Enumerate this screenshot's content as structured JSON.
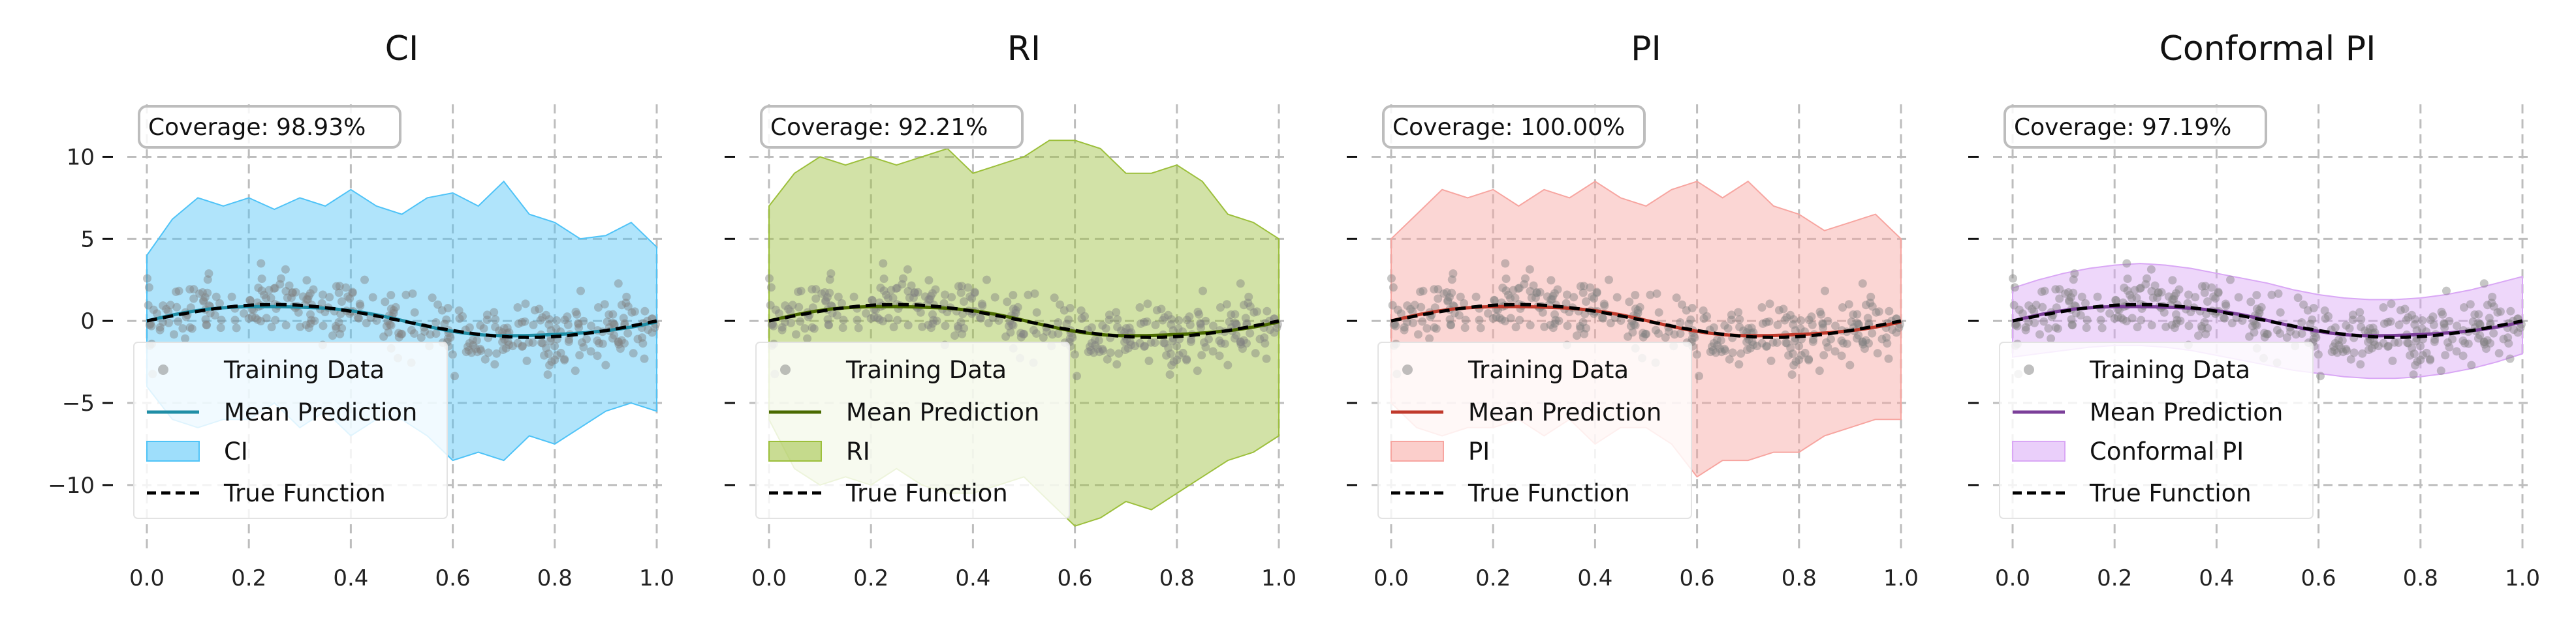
{
  "chart_data": [
    {
      "type": "line",
      "title": "CI",
      "coverage": "Coverage: 98.93%",
      "band_label": "CI",
      "band_color": "#4fc3f7",
      "mean_color": "#1f8ea6",
      "xlim": [
        0.0,
        1.0
      ],
      "ylim": [
        -13.5,
        12.8
      ],
      "xticks": [
        0.0,
        0.2,
        0.4,
        0.6,
        0.8,
        1.0
      ],
      "xtick_labels": [
        "0.0",
        "0.2",
        "0.4",
        "0.6",
        "0.8",
        "1.0"
      ],
      "yticks": [
        10,
        5,
        0,
        -5,
        -10
      ],
      "ytick_labels": [
        "10",
        "5",
        "0",
        "−5",
        "−10"
      ],
      "grid": true,
      "legend": [
        "Training Data",
        "Mean Prediction",
        "CI",
        "True Function"
      ],
      "legend_position": "lower-left",
      "band": {
        "x": [
          0.0,
          0.05,
          0.1,
          0.15,
          0.2,
          0.25,
          0.3,
          0.35,
          0.4,
          0.45,
          0.5,
          0.55,
          0.6,
          0.65,
          0.7,
          0.75,
          0.8,
          0.85,
          0.9,
          0.95,
          1.0
        ],
        "lower": [
          -4,
          -6,
          -6.5,
          -6,
          -6,
          -5,
          -6.5,
          -5.5,
          -7,
          -6,
          -6,
          -7,
          -8.5,
          -8,
          -8.5,
          -7,
          -7.5,
          -6.5,
          -5.5,
          -5,
          -5.5
        ],
        "upper": [
          4,
          6.2,
          7.5,
          7,
          7.5,
          6.8,
          7.5,
          7,
          8,
          7,
          6.5,
          7.5,
          7.8,
          7,
          8.5,
          6.5,
          6,
          5,
          5.2,
          6,
          4.5
        ]
      }
    },
    {
      "type": "line",
      "title": "RI",
      "coverage": "Coverage: 92.21%",
      "band_label": "RI",
      "band_color": "#9cbf3b",
      "mean_color": "#4a6a00",
      "xlim": [
        0.0,
        1.0
      ],
      "ylim": [
        -13.5,
        12.8
      ],
      "xticks": [
        0.0,
        0.2,
        0.4,
        0.6,
        0.8,
        1.0
      ],
      "xtick_labels": [
        "0.0",
        "0.2",
        "0.4",
        "0.6",
        "0.8",
        "1.0"
      ],
      "yticks": [
        10,
        5,
        0,
        -5,
        -10
      ],
      "ytick_labels": [
        "",
        "",
        "",
        "",
        ""
      ],
      "grid": true,
      "legend": [
        "Training Data",
        "Mean Prediction",
        "RI",
        "True Function"
      ],
      "legend_position": "lower-left",
      "band": {
        "x": [
          0.0,
          0.05,
          0.1,
          0.15,
          0.2,
          0.25,
          0.3,
          0.35,
          0.4,
          0.45,
          0.5,
          0.55,
          0.6,
          0.65,
          0.7,
          0.75,
          0.8,
          0.85,
          0.9,
          0.95,
          1.0
        ],
        "lower": [
          -6,
          -9,
          -10,
          -9.5,
          -10,
          -9,
          -10,
          -10.5,
          -10.5,
          -10,
          -9.5,
          -11,
          -12.5,
          -12,
          -11,
          -11.5,
          -10.5,
          -9.5,
          -8.5,
          -8,
          -7
        ],
        "upper": [
          7,
          9,
          10,
          9.5,
          10,
          9.5,
          10,
          10.5,
          9,
          9.5,
          10,
          11,
          11,
          10.5,
          9,
          9,
          9.5,
          8.5,
          6.5,
          6,
          5
        ]
      }
    },
    {
      "type": "line",
      "title": "PI",
      "coverage": "Coverage: 100.00%",
      "band_label": "PI",
      "band_color": "#f7a5a0",
      "mean_color": "#c0392b",
      "xlim": [
        0.0,
        1.0
      ],
      "ylim": [
        -13.5,
        12.8
      ],
      "xticks": [
        0.0,
        0.2,
        0.4,
        0.6,
        0.8,
        1.0
      ],
      "xtick_labels": [
        "0.0",
        "0.2",
        "0.4",
        "0.6",
        "0.8",
        "1.0"
      ],
      "yticks": [
        10,
        5,
        0,
        -5,
        -10
      ],
      "ytick_labels": [
        "",
        "",
        "",
        "",
        ""
      ],
      "grid": true,
      "legend": [
        "Training Data",
        "Mean Prediction",
        "PI",
        "True Function"
      ],
      "legend_position": "lower-left",
      "band": {
        "x": [
          0.0,
          0.05,
          0.1,
          0.15,
          0.2,
          0.25,
          0.3,
          0.35,
          0.4,
          0.45,
          0.5,
          0.55,
          0.6,
          0.65,
          0.7,
          0.75,
          0.8,
          0.85,
          0.9,
          0.95,
          1.0
        ],
        "lower": [
          -5,
          -6.5,
          -7,
          -6.5,
          -6.5,
          -6,
          -7,
          -6,
          -7.5,
          -6.5,
          -6.5,
          -7.5,
          -9.5,
          -8.5,
          -8.5,
          -8,
          -8,
          -7,
          -6.5,
          -6,
          -6
        ],
        "upper": [
          5,
          6.5,
          8,
          7.5,
          8,
          7,
          8,
          7.5,
          8.5,
          7.5,
          7,
          8,
          8.5,
          7.5,
          8.5,
          7,
          6.5,
          5.5,
          6,
          6.5,
          5
        ]
      }
    },
    {
      "type": "line",
      "title": "Conformal PI",
      "coverage": "Coverage: 97.19%",
      "band_label": "Conformal PI",
      "band_color": "#d9a7f5",
      "mean_color": "#7b3f99",
      "xlim": [
        0.0,
        1.0
      ],
      "ylim": [
        -13.5,
        12.8
      ],
      "xticks": [
        0.0,
        0.2,
        0.4,
        0.6,
        0.8,
        1.0
      ],
      "xtick_labels": [
        "0.0",
        "0.2",
        "0.4",
        "0.6",
        "0.8",
        "1.0"
      ],
      "yticks": [
        10,
        5,
        0,
        -5,
        -10
      ],
      "ytick_labels": [
        "",
        "",
        "",
        "",
        ""
      ],
      "grid": true,
      "legend": [
        "Training Data",
        "Mean Prediction",
        "Conformal PI",
        "True Function"
      ],
      "legend_position": "lower-left",
      "band": {
        "x": [
          0.0,
          0.05,
          0.1,
          0.15,
          0.2,
          0.25,
          0.3,
          0.35,
          0.4,
          0.45,
          0.5,
          0.55,
          0.6,
          0.65,
          0.7,
          0.75,
          0.8,
          0.85,
          0.9,
          0.95,
          1.0
        ],
        "lower": [
          -2.2,
          -2,
          -1.8,
          -1.6,
          -1.5,
          -1.5,
          -1.6,
          -1.8,
          -2.1,
          -2.4,
          -2.7,
          -3,
          -3.2,
          -3.4,
          -3.5,
          -3.5,
          -3.4,
          -3.2,
          -2.9,
          -2.5,
          -2.0
        ],
        "upper": [
          2.0,
          2.5,
          2.9,
          3.2,
          3.4,
          3.5,
          3.4,
          3.2,
          2.9,
          2.6,
          2.3,
          1.9,
          1.6,
          1.4,
          1.3,
          1.3,
          1.4,
          1.6,
          1.9,
          2.3,
          2.7
        ]
      }
    }
  ]
}
